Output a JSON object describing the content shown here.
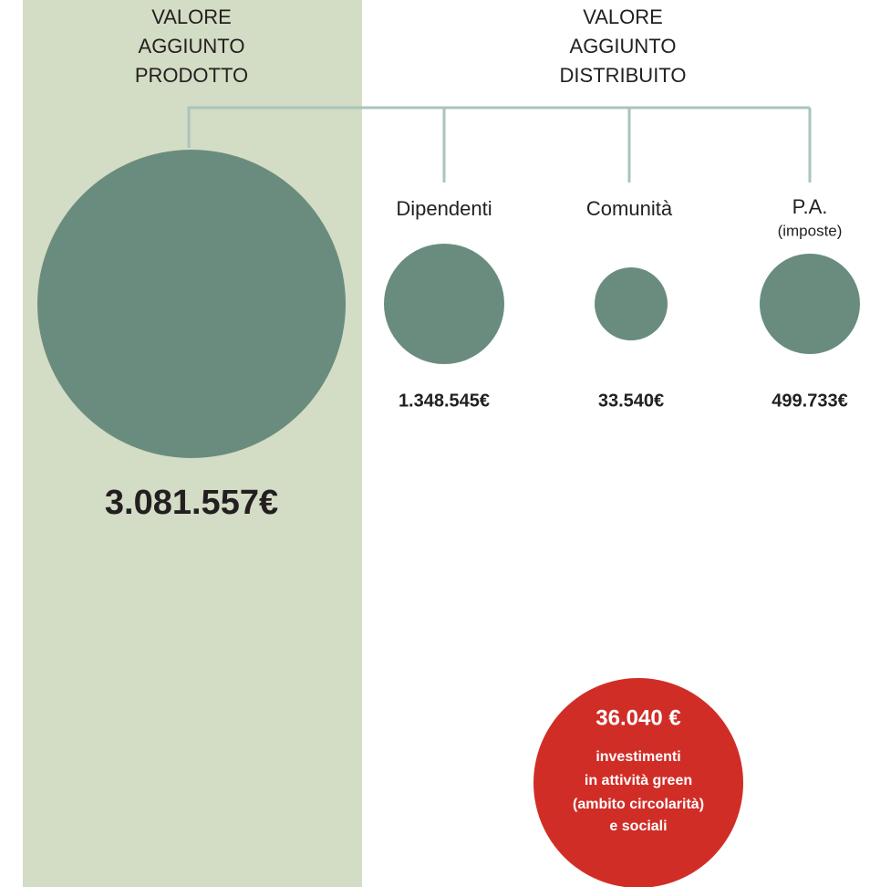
{
  "produced": {
    "title_lines": [
      "VALORE",
      "AGGIUNTO",
      "PRODOTTO"
    ],
    "value": "3.081.557€"
  },
  "distributed": {
    "title_lines": [
      "VALORE",
      "AGGIUNTO",
      "DISTRIBUITO"
    ],
    "items": [
      {
        "label": "Dipendenti",
        "value": "1.348.545€"
      },
      {
        "label": "Comunità",
        "value": "33.540€"
      },
      {
        "label": "P.A.",
        "sublabel": "(imposte)",
        "value": "499.733€"
      }
    ]
  },
  "callout": {
    "value": "36.040 €",
    "lines": [
      "investimenti",
      "in attività green",
      "(ambito circolarità)",
      "e sociali"
    ]
  }
}
